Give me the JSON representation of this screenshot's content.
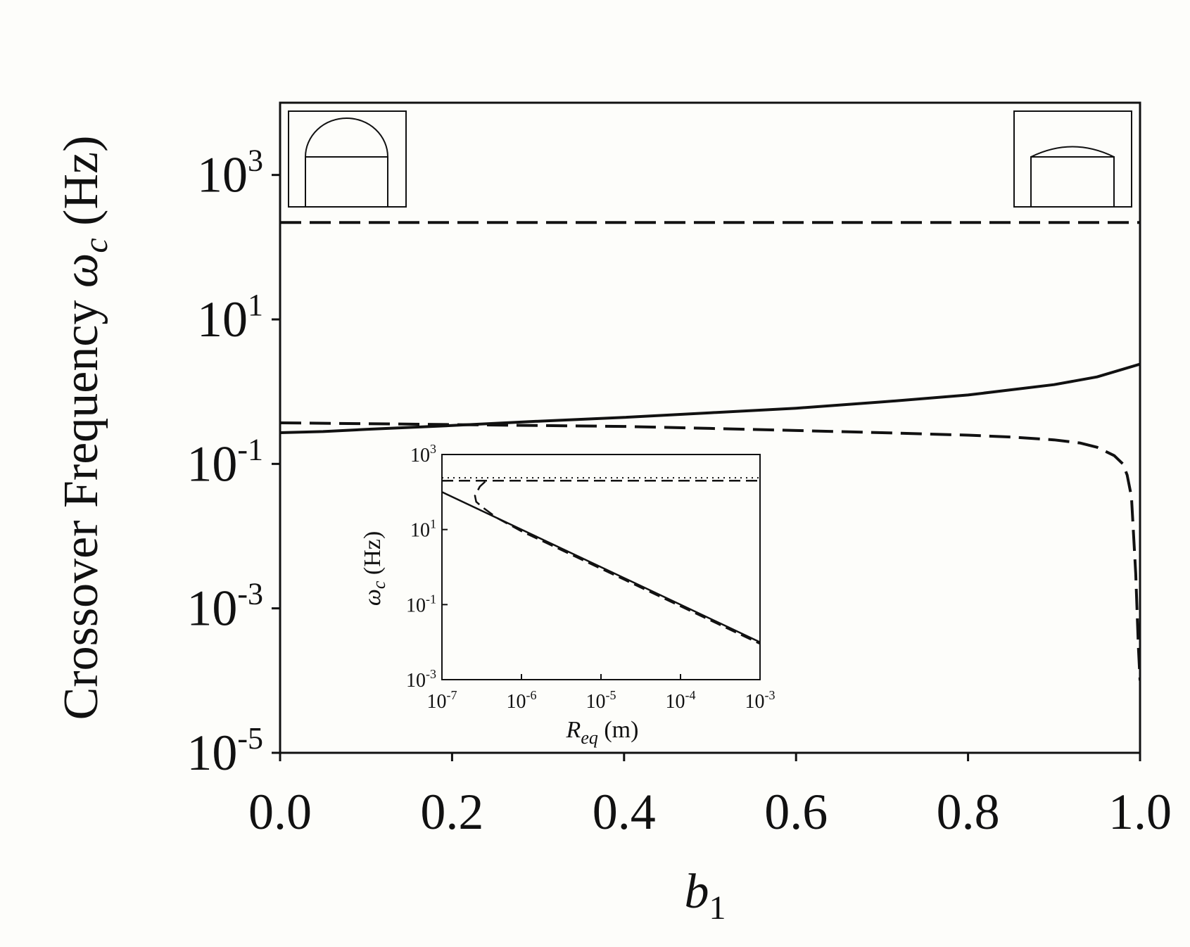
{
  "chart_data": [
    {
      "type": "line",
      "ylabel": {
        "main": "Crossover Frequency ",
        "symbol": "ω",
        "subscript": "c",
        "unit": " (Hz)"
      },
      "xlabel": {
        "symbol": "b",
        "subscript": "1"
      },
      "x_scale": "linear",
      "y_scale": "log",
      "xlim": [
        0.0,
        1.0
      ],
      "ylim": [
        1e-05,
        10000
      ],
      "x_ticks": [
        "0.0",
        "0.2",
        "0.4",
        "0.6",
        "0.8",
        "1.0"
      ],
      "y_ticks": [
        {
          "base": "10",
          "exp": "-5",
          "value": 1e-05
        },
        {
          "base": "10",
          "exp": "-3",
          "value": 0.001
        },
        {
          "base": "10",
          "exp": "-1",
          "value": 0.1
        },
        {
          "base": "10",
          "exp": "1",
          "value": 10
        },
        {
          "base": "10",
          "exp": "3",
          "value": 1000
        }
      ],
      "grid": false,
      "series": [
        {
          "style": "dashed",
          "color": "#111111",
          "x": [
            0.0,
            1.0
          ],
          "y": [
            220,
            220
          ]
        },
        {
          "style": "solid",
          "color": "#111111",
          "x": [
            0.0,
            0.05,
            0.1,
            0.2,
            0.3,
            0.4,
            0.5,
            0.6,
            0.7,
            0.8,
            0.9,
            0.95,
            1.0
          ],
          "y": [
            0.27,
            0.28,
            0.3,
            0.34,
            0.39,
            0.44,
            0.51,
            0.59,
            0.72,
            0.9,
            1.25,
            1.6,
            2.4
          ]
        },
        {
          "style": "dashed",
          "color": "#111111",
          "x": [
            0.0,
            0.1,
            0.2,
            0.3,
            0.4,
            0.5,
            0.6,
            0.7,
            0.8,
            0.85,
            0.9,
            0.93,
            0.95,
            0.97,
            0.98,
            0.985,
            0.99,
            0.995,
            0.998,
            1.0
          ],
          "y": [
            0.37,
            0.36,
            0.35,
            0.34,
            0.33,
            0.31,
            0.29,
            0.27,
            0.25,
            0.235,
            0.215,
            0.195,
            0.17,
            0.13,
            0.1,
            0.07,
            0.035,
            0.003,
            0.0003,
            0.0001
          ]
        }
      ]
    },
    {
      "type": "line",
      "ylabel": {
        "symbol": "ω",
        "subscript": "c",
        "unit": " (Hz)"
      },
      "xlabel": {
        "symbol": "R",
        "subscript": "eq",
        "unit": " (m)"
      },
      "x_scale": "log",
      "y_scale": "log",
      "xlim": [
        1e-07,
        0.001
      ],
      "ylim": [
        0.001,
        1000
      ],
      "x_ticks": [
        {
          "base": "10",
          "exp": "-7",
          "value": 1e-07
        },
        {
          "base": "10",
          "exp": "-6",
          "value": 1e-06
        },
        {
          "base": "10",
          "exp": "-5",
          "value": 1e-05
        },
        {
          "base": "10",
          "exp": "-4",
          "value": 0.0001
        },
        {
          "base": "10",
          "exp": "-3",
          "value": 0.001
        }
      ],
      "y_ticks": [
        {
          "base": "10",
          "exp": "-3",
          "value": 0.001
        },
        {
          "base": "10",
          "exp": "-1",
          "value": 0.1
        },
        {
          "base": "10",
          "exp": "1",
          "value": 10
        },
        {
          "base": "10",
          "exp": "3",
          "value": 1000
        }
      ],
      "grid": false,
      "series": [
        {
          "style": "dotted",
          "color": "#111111",
          "x": [
            1e-07,
            0.001
          ],
          "y": [
            240,
            240
          ]
        },
        {
          "style": "dashed",
          "color": "#111111",
          "x": [
            1e-07,
            0.001
          ],
          "y": [
            200,
            200
          ]
        },
        {
          "style": "solid",
          "color": "#111111",
          "x": [
            1e-07,
            0.001
          ],
          "y": [
            100,
            0.01
          ]
        },
        {
          "style": "dashed",
          "color": "#111111",
          "x": [
            3.5e-07,
            3e-07,
            2.6e-07,
            2.7e-07,
            3.3e-07,
            5e-07,
            1e-06,
            1e-05,
            0.0001,
            0.001
          ],
          "y": [
            190,
            140,
            80,
            55,
            38,
            20,
            9,
            0.9,
            0.09,
            0.009
          ]
        }
      ]
    }
  ]
}
